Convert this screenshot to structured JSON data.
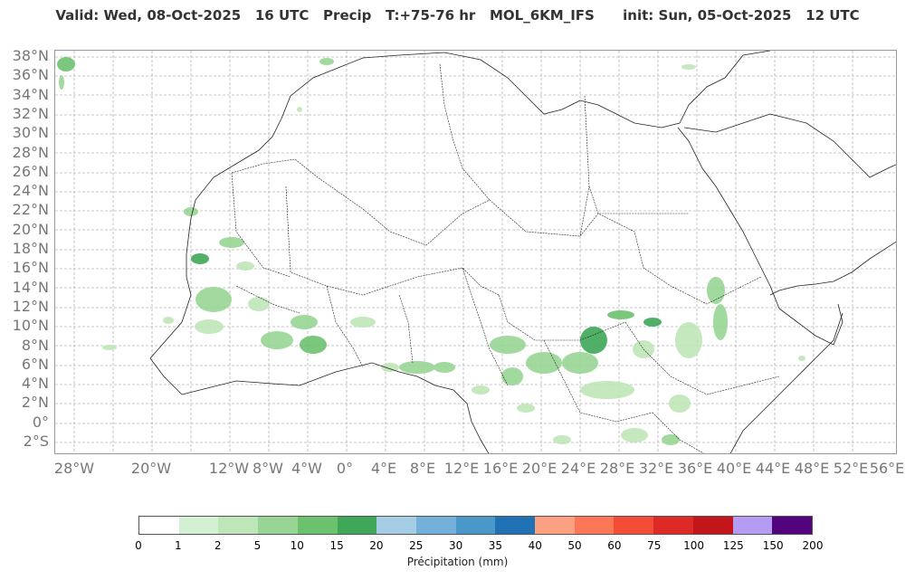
{
  "title": "Valid: Wed, 08-Oct-2025   16 UTC   Precip   T:+75-76 hr   MOL_6KM_IFS      init: Sun, 05-Oct-2025   12 UTC",
  "lat_labels": [
    "38°N",
    "36°N",
    "34°N",
    "32°N",
    "30°N",
    "28°N",
    "26°N",
    "24°N",
    "22°N",
    "20°N",
    "18°N",
    "16°N",
    "14°N",
    "12°N",
    "10°N",
    "8°N",
    "6°N",
    "4°N",
    "2°N",
    "0°",
    "2°S"
  ],
  "lon_labels": [
    "28°W",
    "20°W",
    "12°W",
    "8°W",
    "4°W",
    "0°",
    "4°E",
    "8°E",
    "12°E",
    "16°E",
    "20°E",
    "24°E",
    "28°E",
    "32°E",
    "36°E",
    "40°E",
    "44°E",
    "48°E",
    "52°E",
    "56°E"
  ],
  "colorbar": {
    "ticks": [
      "0",
      "1",
      "2",
      "5",
      "10",
      "15",
      "20",
      "25",
      "30",
      "35",
      "40",
      "50",
      "60",
      "75",
      "100",
      "125",
      "150",
      "200"
    ],
    "colors": [
      "#ffffff",
      "#d3f0d3",
      "#bfe6b8",
      "#98d594",
      "#6cc16f",
      "#3fa858",
      "#a6cde6",
      "#74b0d9",
      "#4a97c9",
      "#2171b5",
      "#fca082",
      "#fb7757",
      "#f44d37",
      "#dd2a27",
      "#c3161b",
      "#b49cf2",
      "#54037e"
    ],
    "label": "Précipitation (mm)"
  }
}
